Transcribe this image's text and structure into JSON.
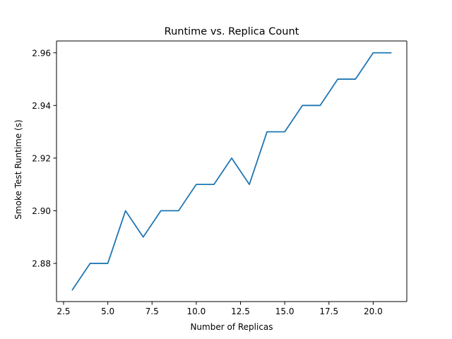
{
  "chart_data": {
    "type": "line",
    "title": "Runtime vs. Replica Count",
    "xlabel": "Number of Replicas",
    "ylabel": "Smoke Test Runtime (s)",
    "xlim": [
      2.1,
      21.9
    ],
    "ylim": [
      2.8655,
      2.9645
    ],
    "xticks": [
      2.5,
      5.0,
      7.5,
      10.0,
      12.5,
      15.0,
      17.5,
      20.0
    ],
    "xtick_labels": [
      "2.5",
      "5.0",
      "7.5",
      "10.0",
      "12.5",
      "15.0",
      "17.5",
      "20.0"
    ],
    "yticks": [
      2.88,
      2.9,
      2.92,
      2.94,
      2.96
    ],
    "ytick_labels": [
      "2.88",
      "2.90",
      "2.92",
      "2.94",
      "2.96"
    ],
    "grid": false,
    "series": [
      {
        "color": "#1f77b4",
        "x": [
          3,
          4,
          5,
          6,
          7,
          8,
          9,
          10,
          11,
          12,
          13,
          14,
          15,
          16,
          17,
          18,
          19,
          20,
          21
        ],
        "y": [
          2.87,
          2.88,
          2.88,
          2.9,
          2.89,
          2.9,
          2.9,
          2.91,
          2.91,
          2.92,
          2.91,
          2.93,
          2.93,
          2.94,
          2.94,
          2.95,
          2.95,
          2.96,
          2.96
        ]
      }
    ]
  }
}
